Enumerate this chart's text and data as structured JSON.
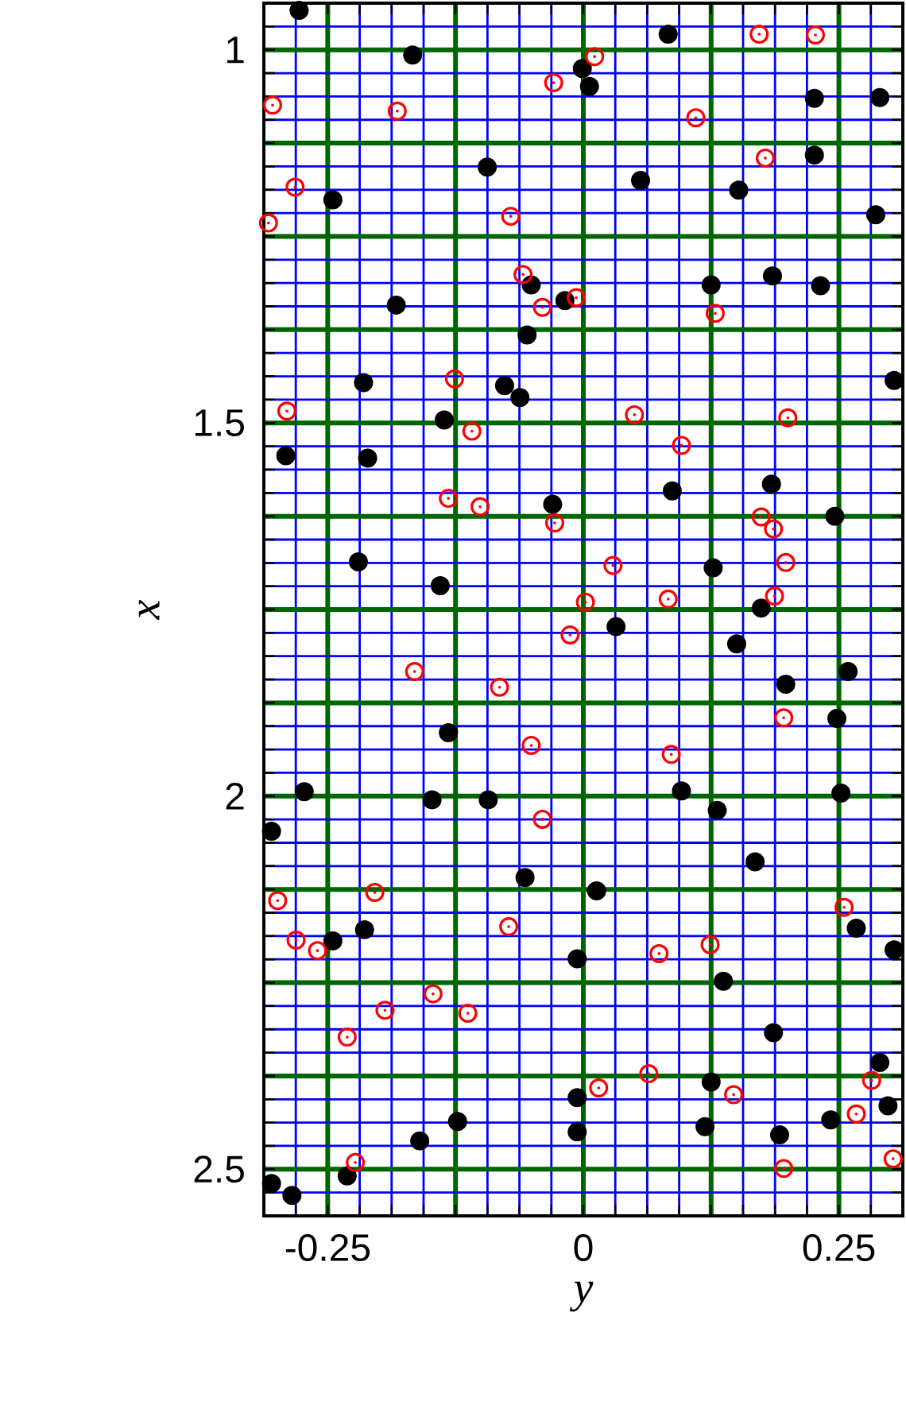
{
  "chart_data": {
    "type": "scatter",
    "xlabel": "y",
    "ylabel": "x",
    "xlim": [
      -0.3125,
      0.3125
    ],
    "ylim": [
      2.5625,
      0.9375
    ],
    "xticks": [
      {
        "value": -0.28125,
        "label": null
      },
      -0.25,
      {
        "value": -0.21875,
        "label": null
      },
      {
        "value": -0.1875,
        "label": null
      },
      {
        "value": -0.15625,
        "label": null
      },
      {
        "value": -0.125,
        "label": null
      },
      {
        "value": -0.09375,
        "label": null
      },
      {
        "value": -0.0625,
        "label": null
      },
      {
        "value": -0.03125,
        "label": null
      },
      0,
      {
        "value": 0.03125,
        "label": null
      },
      {
        "value": 0.0625,
        "label": null
      },
      {
        "value": 0.09375,
        "label": null
      },
      {
        "value": 0.125,
        "label": null
      },
      {
        "value": 0.15625,
        "label": null
      },
      {
        "value": 0.1875,
        "label": null
      },
      {
        "value": 0.21875,
        "label": null
      },
      0.25,
      {
        "value": 0.28125,
        "label": null
      }
    ],
    "yticks": [
      {
        "value": 0.96875,
        "label": null
      },
      1,
      {
        "value": 1.03125,
        "label": null
      },
      {
        "value": 1.0625,
        "label": null
      },
      {
        "value": 1.09375,
        "label": null
      },
      {
        "value": 1.125,
        "label": null
      },
      {
        "value": 1.15625,
        "label": null
      },
      {
        "value": 1.1875,
        "label": null
      },
      {
        "value": 1.21875,
        "label": null
      },
      {
        "value": 1.25,
        "label": null
      },
      {
        "value": 1.28125,
        "label": null
      },
      {
        "value": 1.3125,
        "label": null
      },
      {
        "value": 1.34375,
        "label": null
      },
      {
        "value": 1.375,
        "label": null
      },
      {
        "value": 1.40625,
        "label": null
      },
      {
        "value": 1.4375,
        "label": null
      },
      {
        "value": 1.46875,
        "label": null
      },
      1.5,
      {
        "value": 1.53125,
        "label": null
      },
      {
        "value": 1.5625,
        "label": null
      },
      {
        "value": 1.59375,
        "label": null
      },
      {
        "value": 1.625,
        "label": null
      },
      {
        "value": 1.65625,
        "label": null
      },
      {
        "value": 1.6875,
        "label": null
      },
      {
        "value": 1.71875,
        "label": null
      },
      {
        "value": 1.75,
        "label": null
      },
      {
        "value": 1.78125,
        "label": null
      },
      {
        "value": 1.8125,
        "label": null
      },
      {
        "value": 1.84375,
        "label": null
      },
      {
        "value": 1.875,
        "label": null
      },
      {
        "value": 1.90625,
        "label": null
      },
      {
        "value": 1.9375,
        "label": null
      },
      {
        "value": 1.96875,
        "label": null
      },
      2,
      {
        "value": 2.03125,
        "label": null
      },
      {
        "value": 2.0625,
        "label": null
      },
      {
        "value": 2.09375,
        "label": null
      },
      {
        "value": 2.125,
        "label": null
      },
      {
        "value": 2.15625,
        "label": null
      },
      {
        "value": 2.1875,
        "label": null
      },
      {
        "value": 2.21875,
        "label": null
      },
      {
        "value": 2.25,
        "label": null
      },
      {
        "value": 2.28125,
        "label": null
      },
      {
        "value": 2.3125,
        "label": null
      },
      {
        "value": 2.34375,
        "label": null
      },
      {
        "value": 2.375,
        "label": null
      },
      {
        "value": 2.40625,
        "label": null
      },
      {
        "value": 2.4375,
        "label": null
      },
      {
        "value": 2.46875,
        "label": null
      },
      2.5,
      {
        "value": 2.53125,
        "label": null
      }
    ],
    "grid": true,
    "marker": "circle",
    "series": [
      {
        "color": "#000000",
        "x": [
          -0.278,
          0.083,
          -0.167,
          -0.001,
          0.006,
          0.226,
          0.29,
          0.226,
          -0.094,
          0.056,
          0.152,
          -0.245,
          0.286,
          -0.051,
          0.125,
          0.185,
          0.232,
          -0.018,
          -0.183,
          -0.055,
          -0.215,
          -0.077,
          -0.062,
          0.304,
          -0.136,
          -0.291,
          -0.211,
          0.087,
          0.184,
          -0.03,
          0.246,
          -0.22,
          -0.14,
          0.127,
          0.174,
          0.032,
          0.15,
          0.198,
          0.259,
          0.248,
          -0.132,
          -0.273,
          -0.148,
          -0.093,
          0.096,
          0.131,
          0.252,
          -0.305,
          0.168,
          -0.057,
          0.013,
          0.267,
          -0.214,
          -0.245,
          0.304,
          -0.006,
          0.137,
          0.186,
          0.29,
          0.125,
          -0.006,
          0.298,
          -0.123,
          0.242,
          0.119,
          -0.006,
          -0.16,
          0.192,
          -0.231,
          -0.305,
          -0.285
        ],
        "values": [
          0.947,
          0.979,
          1.007,
          1.025,
          1.049,
          1.065,
          1.064,
          1.141,
          1.157,
          1.175,
          1.188,
          1.201,
          1.221,
          1.315,
          1.315,
          1.303,
          1.316,
          1.336,
          1.342,
          1.382,
          1.446,
          1.45,
          1.466,
          1.443,
          1.496,
          1.544,
          1.547,
          1.591,
          1.582,
          1.609,
          1.625,
          1.686,
          1.718,
          1.694,
          1.748,
          1.773,
          1.796,
          1.85,
          1.833,
          1.896,
          1.915,
          1.994,
          2.005,
          2.005,
          1.993,
          2.019,
          1.996,
          2.047,
          2.088,
          2.109,
          2.127,
          2.177,
          2.179,
          2.194,
          2.206,
          2.218,
          2.248,
          2.317,
          2.357,
          2.383,
          2.404,
          2.415,
          2.436,
          2.434,
          2.443,
          2.45,
          2.462,
          2.454,
          2.509,
          2.519,
          2.535
        ]
      },
      {
        "color": "#ff0000",
        "x": [
          0.172,
          0.227,
          0.011,
          -0.029,
          -0.304,
          -0.182,
          0.11,
          0.178,
          -0.282,
          -0.071,
          -0.308,
          -0.059,
          -0.007,
          -0.04,
          0.129,
          -0.126,
          -0.29,
          -0.109,
          0.05,
          0.2,
          0.096,
          -0.132,
          -0.101,
          -0.028,
          0.174,
          0.186,
          0.198,
          0.029,
          0.002,
          0.083,
          0.187,
          -0.013,
          -0.165,
          -0.082,
          0.196,
          -0.051,
          0.086,
          -0.04,
          -0.299,
          -0.204,
          0.255,
          -0.073,
          -0.281,
          -0.26,
          0.074,
          0.124,
          -0.147,
          -0.194,
          -0.113,
          -0.231,
          0.064,
          0.015,
          0.147,
          0.282,
          0.267,
          0.196,
          -0.223,
          0.303
        ],
        "values": [
          0.979,
          0.98,
          1.009,
          1.044,
          1.074,
          1.082,
          1.091,
          1.145,
          1.184,
          1.223,
          1.232,
          1.301,
          1.332,
          1.345,
          1.353,
          1.441,
          1.484,
          1.511,
          1.489,
          1.493,
          1.53,
          1.601,
          1.612,
          1.634,
          1.626,
          1.642,
          1.687,
          1.691,
          1.74,
          1.736,
          1.732,
          1.784,
          1.833,
          1.854,
          1.895,
          1.932,
          1.944,
          2.031,
          2.14,
          2.129,
          2.149,
          2.175,
          2.193,
          2.207,
          2.211,
          2.199,
          2.265,
          2.287,
          2.291,
          2.323,
          2.372,
          2.391,
          2.4,
          2.381,
          2.426,
          2.499,
          2.491,
          2.486
        ]
      }
    ]
  }
}
